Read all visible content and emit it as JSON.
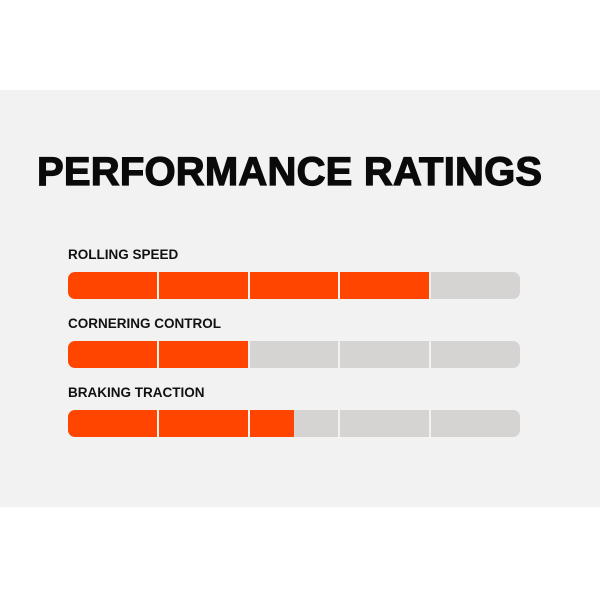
{
  "title": "PERFORMANCE RATINGS",
  "colors": {
    "fill": "#ff4500",
    "empty": "#d6d3d3",
    "background": "#f2f2f2"
  },
  "scale_max": 5,
  "ratings": [
    {
      "label": "ROLLING SPEED",
      "value": 4
    },
    {
      "label": "CORNERING CONTROL",
      "value": 2
    },
    {
      "label": "BRAKING TRACTION",
      "value": 2.5
    }
  ]
}
